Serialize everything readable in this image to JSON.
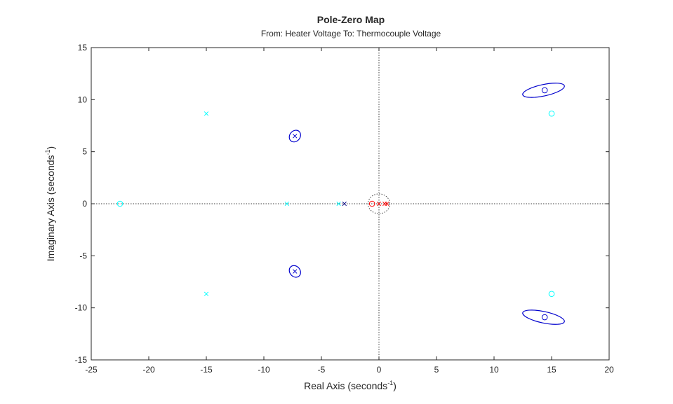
{
  "chart_data": {
    "type": "scatter",
    "title": "Pole-Zero Map",
    "subtitle": "From: Heater Voltage  To: Thermocouple Voltage",
    "xlabel": "Real  Axis  (seconds",
    "ylabel": "Imaginary  Axis  (seconds",
    "label_superscript": "-1",
    "label_suffix": ")",
    "xlim": [
      -25,
      20
    ],
    "ylim": [
      -15,
      15
    ],
    "xticks": [
      -25,
      -20,
      -15,
      -10,
      -5,
      0,
      5,
      10,
      15,
      20
    ],
    "yticks": [
      -15,
      -10,
      -5,
      0,
      5,
      10,
      15
    ],
    "zero_lines": "dotted",
    "colors": {
      "cyan": "#00ffff",
      "red": "#ff0000",
      "blue": "#0000cd",
      "navy": "#000080",
      "axes": "#262626",
      "zero_line": "#404040"
    },
    "poles": [
      {
        "x": -15,
        "y": 8.66,
        "color": "cyan"
      },
      {
        "x": -15,
        "y": -8.66,
        "color": "cyan"
      },
      {
        "x": -8,
        "y": 0,
        "color": "cyan"
      },
      {
        "x": -3.5,
        "y": 0,
        "color": "cyan"
      },
      {
        "x": -3,
        "y": 0,
        "color": "navy"
      },
      {
        "x": 0,
        "y": 0,
        "color": "red"
      },
      {
        "x": 0.5,
        "y": 0,
        "color": "red"
      },
      {
        "x": 0.7,
        "y": 0,
        "color": "red"
      },
      {
        "x": -7.3,
        "y": 6.5,
        "color": "blue"
      },
      {
        "x": -7.3,
        "y": -6.5,
        "color": "blue"
      }
    ],
    "zeros": [
      {
        "x": -22.5,
        "y": 0,
        "color": "cyan"
      },
      {
        "x": 15,
        "y": 8.66,
        "color": "cyan"
      },
      {
        "x": 15,
        "y": -8.66,
        "color": "cyan"
      },
      {
        "x": -0.6,
        "y": 0,
        "color": "red"
      },
      {
        "x": 14.4,
        "y": 10.9,
        "color": "blue"
      },
      {
        "x": 14.4,
        "y": -10.9,
        "color": "blue"
      }
    ],
    "uncertainty_ellipses": [
      {
        "cx": -7.3,
        "cy": 6.5,
        "rx": 0.45,
        "ry": 0.6,
        "angle": -40,
        "color": "blue",
        "style": "solid"
      },
      {
        "cx": -7.3,
        "cy": -6.5,
        "rx": 0.45,
        "ry": 0.6,
        "angle": 40,
        "color": "blue",
        "style": "solid"
      },
      {
        "cx": 14.3,
        "cy": 10.9,
        "rx": 1.85,
        "ry": 0.55,
        "angle": 12,
        "color": "blue",
        "style": "solid"
      },
      {
        "cx": 14.3,
        "cy": -10.9,
        "rx": 1.85,
        "ry": 0.55,
        "angle": -12,
        "color": "blue",
        "style": "solid"
      },
      {
        "cx": 0,
        "cy": 0,
        "rx": 0.95,
        "ry": 0.95,
        "angle": 0,
        "color": "zero_line",
        "style": "dotted"
      }
    ]
  }
}
